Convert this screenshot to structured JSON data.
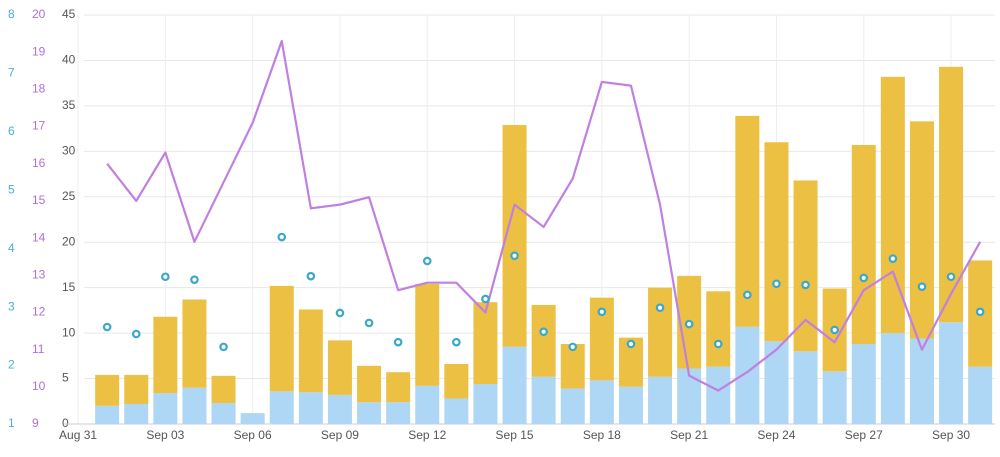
{
  "chart_data": {
    "type": "bar",
    "stacked": true,
    "categories": [
      "Aug 31",
      null,
      null,
      "Sep 03",
      null,
      null,
      "Sep 06",
      null,
      null,
      "Sep 09",
      null,
      null,
      "Sep 12",
      null,
      null,
      "Sep 15",
      null,
      null,
      "Sep 18",
      null,
      null,
      "Sep 21",
      null,
      null,
      "Sep 24",
      null,
      null,
      "Sep 27",
      null,
      null,
      "Sep 30",
      null
    ],
    "ylim": [
      0,
      45
    ],
    "yticks": [
      0,
      5,
      10,
      15,
      20,
      25,
      30,
      35,
      40,
      45
    ],
    "y2lim": [
      9,
      20
    ],
    "y2ticks": [
      9,
      10,
      11,
      12,
      13,
      14,
      15,
      16,
      17,
      18,
      19,
      20
    ],
    "y3lim": [
      1,
      8
    ],
    "y3ticks": [
      1,
      2,
      3,
      4,
      5,
      6,
      7,
      8
    ],
    "grid": true,
    "series": [
      {
        "type": "bar",
        "color": "#aed6f5",
        "values": [
          null,
          2.0,
          2.2,
          3.4,
          4.0,
          2.3,
          1.2,
          3.6,
          3.5,
          3.2,
          2.4,
          2.4,
          4.2,
          2.8,
          4.4,
          8.5,
          5.2,
          3.9,
          4.8,
          4.1,
          5.2,
          6.1,
          6.3,
          10.7,
          9.1,
          8.0,
          5.8,
          8.8,
          10.0,
          9.4,
          11.2,
          6.3
        ]
      },
      {
        "type": "bar",
        "color": "#ecc043",
        "values": [
          null,
          3.4,
          3.2,
          8.4,
          9.7,
          3.0,
          0,
          11.6,
          9.1,
          6.0,
          4.0,
          3.3,
          11.2,
          3.8,
          9.0,
          24.4,
          7.9,
          4.9,
          9.1,
          5.4,
          9.8,
          10.2,
          8.3,
          23.2,
          21.9,
          18.8,
          9.1,
          21.9,
          28.2,
          23.9,
          28.1,
          11.7
        ]
      },
      {
        "type": "line",
        "axis": "y2",
        "color": "#c17fe0",
        "values": [
          null,
          16.0,
          15.0,
          16.3,
          13.9,
          15.5,
          17.1,
          19.3,
          14.8,
          14.9,
          15.1,
          12.6,
          12.8,
          12.8,
          12.0,
          14.9,
          14.3,
          15.6,
          18.2,
          18.1,
          14.9,
          10.3,
          9.9,
          10.4,
          11.0,
          11.8,
          11.2,
          12.6,
          13.1,
          11.0,
          12.5,
          13.9
        ]
      },
      {
        "type": "scatter",
        "axis": "y3",
        "color": "#3aa8c9",
        "values": [
          null,
          2.66,
          2.54,
          3.52,
          3.47,
          2.32,
          null,
          4.2,
          3.53,
          2.9,
          2.73,
          2.4,
          3.79,
          2.4,
          3.14,
          3.88,
          2.58,
          2.32,
          2.92,
          2.37,
          2.99,
          2.71,
          2.37,
          3.21,
          3.4,
          3.38,
          2.61,
          3.5,
          3.83,
          3.35,
          3.52,
          2.92
        ]
      }
    ]
  }
}
